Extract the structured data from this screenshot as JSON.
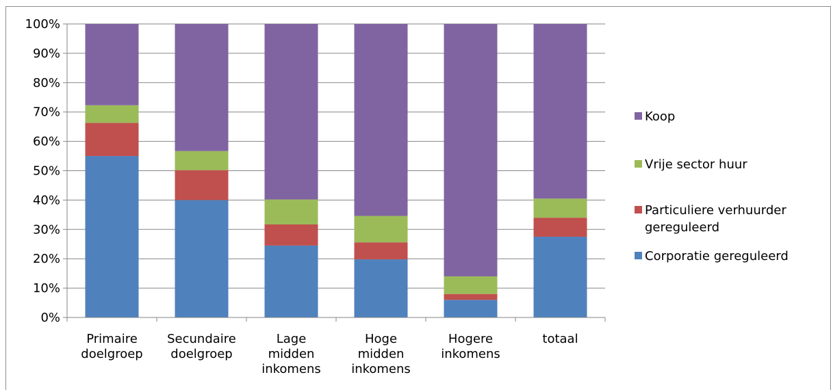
{
  "title": "",
  "chart_data": {
    "type": "bar",
    "stacked": true,
    "normalized": true,
    "categories": [
      [
        "Primaire",
        "doelgroep"
      ],
      [
        "Secundaire",
        "doelgroep"
      ],
      [
        "Lage",
        "midden",
        "inkomens"
      ],
      [
        "Hoge",
        "midden",
        "inkomens"
      ],
      [
        "Hogere",
        "inkomens"
      ],
      [
        "totaal"
      ]
    ],
    "series": [
      {
        "name": "Corporatie gereguleerd",
        "color": "#4f81bd",
        "values": [
          55,
          40,
          24.5,
          19.8,
          6,
          27.5
        ]
      },
      {
        "name": "Particuliere verhuurder gereguleerd",
        "color": "#c0504d",
        "values": [
          11.3,
          10.2,
          7.2,
          5.8,
          2,
          6.5
        ]
      },
      {
        "name": "Vrije sector huur",
        "color": "#9bbb59",
        "values": [
          6,
          6.5,
          8.5,
          9,
          6,
          6.5
        ]
      },
      {
        "name": "Koop",
        "color": "#8064a2",
        "values": [
          27.7,
          43.3,
          59.8,
          65.4,
          86,
          59.5
        ]
      }
    ],
    "yticks": [
      "0%",
      "10%",
      "20%",
      "30%",
      "40%",
      "50%",
      "60%",
      "70%",
      "80%",
      "90%",
      "100%"
    ],
    "ylim": [
      0,
      100
    ],
    "grid": true,
    "legend_position": "right",
    "legend_entries": [
      {
        "label": [
          "Koop"
        ],
        "color": "#8064a2"
      },
      {
        "label": [
          "Vrije sector huur"
        ],
        "color": "#9bbb59"
      },
      {
        "label": [
          "Particuliere verhuurder",
          "gereguleerd"
        ],
        "color": "#c0504d"
      },
      {
        "label": [
          "Corporatie gereguleerd"
        ],
        "color": "#4f81bd"
      }
    ]
  }
}
